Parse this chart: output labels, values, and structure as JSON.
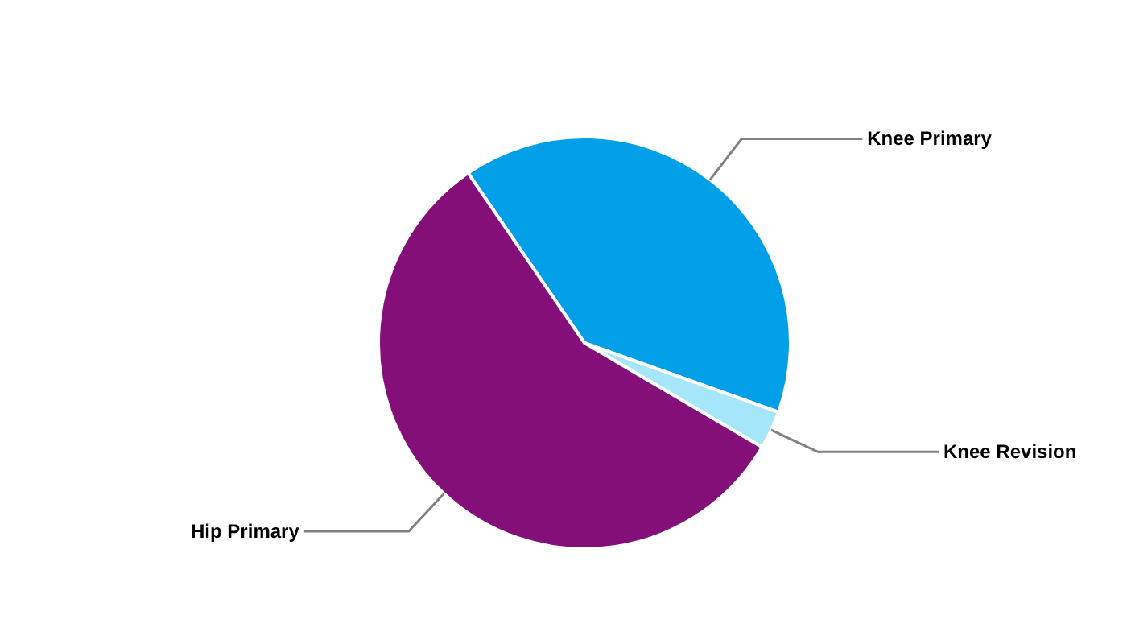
{
  "chart_data": {
    "type": "pie",
    "categories": [
      "Knee Primary",
      "Knee Revision",
      "Hip Primary"
    ],
    "values": [
      40,
      3,
      57
    ],
    "colors": [
      "#009fe8",
      "#a6e6fa",
      "#850f78"
    ],
    "legend": false
  }
}
